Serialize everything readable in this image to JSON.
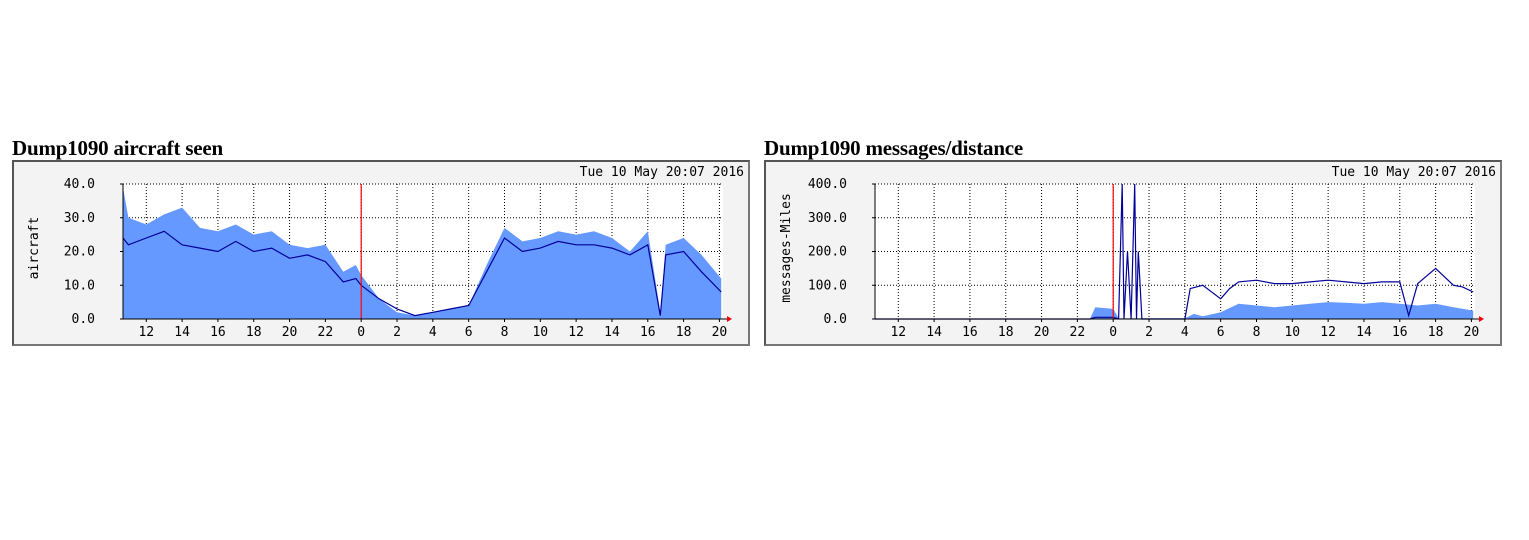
{
  "page": {
    "background": "#ffffff"
  },
  "graphs": [
    {
      "title": "Dump1090 aircraft seen",
      "timestamp": "Tue 10 May 20:07 2016",
      "ylabel": "aircraft"
    },
    {
      "title": "Dump1090 messages/distance",
      "timestamp": "Tue 10 May 20:07 2016",
      "ylabel": "messages-Miles"
    }
  ],
  "chart_data": [
    {
      "type": "area",
      "title": "Dump1090 aircraft seen",
      "ylabel": "aircraft",
      "ylim": [
        0,
        40
      ],
      "yticks": [
        "0.0",
        "10.0",
        "20.0",
        "30.0",
        "40.0"
      ],
      "xlim": [
        10.7,
        44.2
      ],
      "xtick_values": [
        12,
        14,
        16,
        18,
        20,
        22,
        24,
        26,
        28,
        30,
        32,
        34,
        36,
        38,
        40,
        42,
        44
      ],
      "xticks": [
        "12",
        "14",
        "16",
        "18",
        "20",
        "22",
        "0",
        "2",
        "4",
        "6",
        "8",
        "10",
        "12",
        "14",
        "16",
        "18",
        "20"
      ],
      "grid": true,
      "midnight_marker": 24,
      "colors": {
        "area": "#6699ff",
        "line": "#000099",
        "marker": "#ff0000",
        "grid": "#000000"
      },
      "series": [
        {
          "kind": "area",
          "x": [
            10.7,
            11,
            12,
            13,
            14,
            15,
            16,
            17,
            18,
            19,
            20,
            21,
            22,
            23,
            23.7,
            24,
            25,
            26,
            27,
            28,
            29,
            30,
            31,
            32,
            33,
            34,
            35,
            36,
            37,
            38,
            39,
            40,
            40.7,
            41,
            42,
            43,
            44.1
          ],
          "values": [
            39,
            30,
            28,
            31,
            33,
            27,
            26,
            28,
            25,
            26,
            22,
            21,
            22,
            14,
            16,
            13,
            6,
            2,
            1,
            2,
            3,
            4,
            16,
            27,
            23,
            24,
            26,
            25,
            26,
            24,
            20,
            26,
            2,
            22,
            24,
            19,
            12
          ]
        },
        {
          "kind": "line",
          "x": [
            10.7,
            11,
            12,
            13,
            14,
            15,
            16,
            17,
            18,
            19,
            20,
            21,
            22,
            23,
            23.7,
            24,
            25,
            26,
            27,
            28,
            29,
            30,
            31,
            32,
            33,
            34,
            35,
            36,
            37,
            38,
            39,
            40,
            40.7,
            41,
            42,
            43,
            44.1
          ],
          "values": [
            24,
            22,
            24,
            26,
            22,
            21,
            20,
            23,
            20,
            21,
            18,
            19,
            17,
            11,
            12,
            10,
            6,
            3,
            1,
            2,
            3,
            4,
            14,
            24,
            20,
            21,
            23,
            22,
            22,
            21,
            19,
            22,
            1,
            19,
            20,
            14,
            8
          ]
        }
      ]
    },
    {
      "type": "area",
      "title": "Dump1090 messages/distance",
      "ylabel": "messages-Miles",
      "ylim": [
        0,
        400
      ],
      "yticks": [
        "0.0",
        "100.0",
        "200.0",
        "300.0",
        "400.0"
      ],
      "xlim": [
        10.7,
        44.2
      ],
      "xtick_values": [
        12,
        14,
        16,
        18,
        20,
        22,
        24,
        26,
        28,
        30,
        32,
        34,
        36,
        38,
        40,
        42,
        44
      ],
      "xticks": [
        "12",
        "14",
        "16",
        "18",
        "20",
        "22",
        "0",
        "2",
        "4",
        "6",
        "8",
        "10",
        "12",
        "14",
        "16",
        "18",
        "20"
      ],
      "grid": true,
      "midnight_marker": 24,
      "colors": {
        "area": "#6699ff",
        "line": "#000099",
        "marker": "#ff0000",
        "grid": "#000000"
      },
      "series": [
        {
          "kind": "area",
          "x": [
            10.7,
            22.7,
            23,
            24,
            24.3,
            28,
            28.5,
            29,
            30,
            31,
            32,
            33,
            34,
            35,
            36,
            37,
            38,
            39,
            40,
            41,
            42,
            43,
            44.1
          ],
          "values": [
            0,
            0,
            35,
            30,
            2,
            2,
            15,
            8,
            20,
            45,
            40,
            35,
            40,
            45,
            50,
            48,
            45,
            50,
            45,
            40,
            45,
            35,
            25
          ]
        },
        {
          "kind": "line",
          "x": [
            10.7,
            22.7,
            23,
            24,
            24.3,
            24.5,
            24.6,
            24.8,
            25,
            25.2,
            25.3,
            25.4,
            25.6,
            28,
            28.3,
            29,
            30,
            30.5,
            31,
            32,
            33,
            34,
            35,
            36,
            37,
            38,
            39,
            40,
            40.5,
            41,
            42,
            43,
            43.5,
            44.1
          ],
          "values": [
            0,
            0,
            5,
            5,
            0,
            400,
            0,
            200,
            0,
            400,
            0,
            200,
            0,
            0,
            90,
            100,
            60,
            90,
            110,
            115,
            105,
            105,
            110,
            115,
            110,
            105,
            110,
            110,
            10,
            105,
            150,
            100,
            95,
            80
          ]
        }
      ]
    }
  ]
}
